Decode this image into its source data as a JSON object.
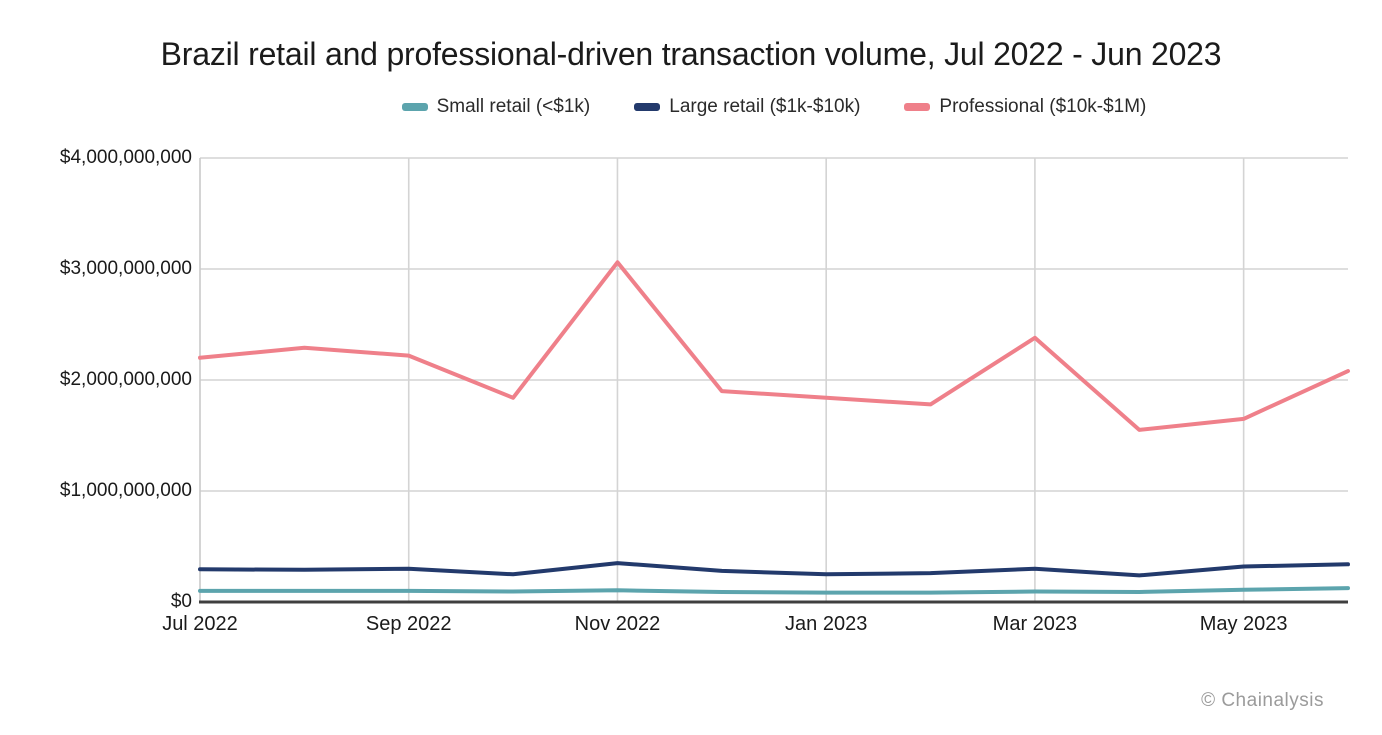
{
  "page": {
    "title": "Brazil retail and professional-driven transaction volume, Jul 2022 - Jun 2023",
    "watermark": "© Chainalysis"
  },
  "chart_data": {
    "type": "line",
    "title": "Brazil retail and professional-driven transaction volume, Jul 2022 - Jun 2023",
    "x": [
      "Jul 2022",
      "Aug 2022",
      "Sep 2022",
      "Oct 2022",
      "Nov 2022",
      "Dec 2022",
      "Jan 2023",
      "Feb 2023",
      "Mar 2023",
      "Apr 2023",
      "May 2023",
      "Jun 2023"
    ],
    "x_tick_labels": [
      "Jul 2022",
      "Sep 2022",
      "Nov 2022",
      "Jan 2023",
      "Mar 2023",
      "May 2023"
    ],
    "x_tick_indices": [
      0,
      2,
      4,
      6,
      8,
      10
    ],
    "y_ticks": [
      0,
      1000000000,
      2000000000,
      3000000000,
      4000000000
    ],
    "y_tick_labels": [
      "$0",
      "$1,000,000,000",
      "$2,000,000,000",
      "$3,000,000,000",
      "$4,000,000,000"
    ],
    "ylim": [
      0,
      4000000000
    ],
    "grid": {
      "horizontal": true,
      "vertical_every_second_month": true
    },
    "legend_position": "top-center",
    "xlabel": "",
    "ylabel": "",
    "series": [
      {
        "name": "Small retail (<$1k)",
        "color": "#5CA4AD",
        "values": [
          100000000,
          100000000,
          100000000,
          95000000,
          105000000,
          90000000,
          85000000,
          85000000,
          95000000,
          90000000,
          110000000,
          125000000
        ]
      },
      {
        "name": "Large retail ($1k-$10k)",
        "color": "#233A6C",
        "values": [
          295000000,
          290000000,
          300000000,
          250000000,
          350000000,
          280000000,
          250000000,
          260000000,
          300000000,
          240000000,
          320000000,
          340000000
        ]
      },
      {
        "name": "Professional ($10k-$1M)",
        "color": "#EF808A",
        "values": [
          2200000000,
          2290000000,
          2220000000,
          1840000000,
          3060000000,
          1900000000,
          1840000000,
          1780000000,
          2380000000,
          1550000000,
          1650000000,
          2080000000
        ]
      }
    ],
    "watermark": "© Chainalysis"
  }
}
